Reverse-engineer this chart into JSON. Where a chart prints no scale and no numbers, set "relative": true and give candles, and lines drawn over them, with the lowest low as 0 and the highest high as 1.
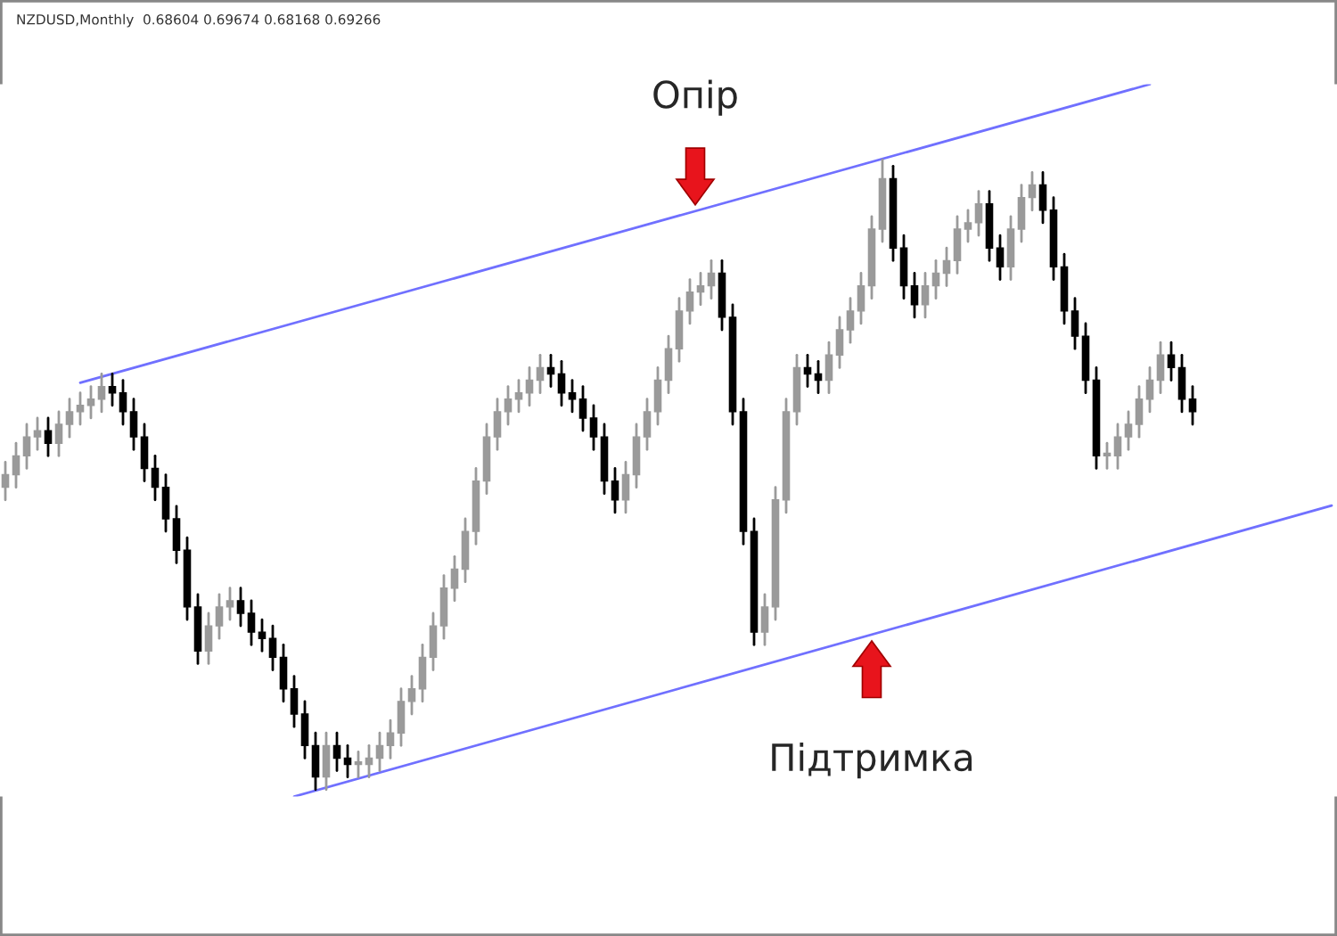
{
  "chart_data": {
    "type": "candlestick",
    "relative": true,
    "annotations": [
      "NZDUSD,Monthly  0.68604 0.69674 0.68168 0.69266",
      "Опір",
      "Підтримка"
    ],
    "categories": [
      null,
      null,
      null,
      null,
      null,
      null,
      null,
      null,
      null,
      null,
      null,
      null,
      null,
      null,
      null,
      null,
      null,
      null,
      null,
      null,
      null,
      null,
      null,
      null,
      null,
      null,
      null,
      null,
      null,
      null,
      null,
      null,
      null,
      null,
      null,
      null,
      null,
      null,
      null,
      null,
      null,
      null,
      null,
      null,
      null,
      null,
      null,
      null,
      null,
      null,
      null,
      null,
      null,
      null,
      null,
      null,
      null,
      null,
      null,
      null,
      null,
      null,
      null,
      null,
      null,
      null,
      null,
      null,
      null,
      null,
      null,
      null,
      null,
      null,
      null,
      null,
      null,
      null,
      null,
      null,
      null,
      null,
      null,
      null,
      null,
      null,
      null,
      null,
      null,
      null,
      null,
      null,
      null,
      null,
      null,
      null,
      null,
      null,
      null,
      null,
      null,
      null,
      null,
      null,
      null,
      null,
      null,
      null,
      null,
      null,
      null,
      null,
      null,
      null,
      null,
      null,
      null,
      null,
      null,
      null,
      null,
      null,
      null,
      null,
      null
    ],
    "ohlc": [
      [
        0.48,
        0.52,
        0.46,
        0.5
      ],
      [
        0.5,
        0.55,
        0.48,
        0.53
      ],
      [
        0.53,
        0.58,
        0.51,
        0.56
      ],
      [
        0.56,
        0.59,
        0.54,
        0.57
      ],
      [
        0.57,
        0.59,
        0.53,
        0.55
      ],
      [
        0.55,
        0.6,
        0.53,
        0.58
      ],
      [
        0.58,
        0.62,
        0.56,
        0.6
      ],
      [
        0.6,
        0.63,
        0.58,
        0.61
      ],
      [
        0.61,
        0.64,
        0.59,
        0.62
      ],
      [
        0.62,
        0.66,
        0.6,
        0.64
      ],
      [
        0.64,
        0.66,
        0.61,
        0.63
      ],
      [
        0.63,
        0.65,
        0.58,
        0.6
      ],
      [
        0.6,
        0.62,
        0.54,
        0.56
      ],
      [
        0.56,
        0.58,
        0.49,
        0.51
      ],
      [
        0.51,
        0.53,
        0.46,
        0.48
      ],
      [
        0.48,
        0.5,
        0.41,
        0.43
      ],
      [
        0.43,
        0.45,
        0.36,
        0.38
      ],
      [
        0.38,
        0.4,
        0.27,
        0.29
      ],
      [
        0.29,
        0.31,
        0.2,
        0.22
      ],
      [
        0.22,
        0.28,
        0.2,
        0.26
      ],
      [
        0.26,
        0.31,
        0.24,
        0.29
      ],
      [
        0.29,
        0.32,
        0.27,
        0.3
      ],
      [
        0.3,
        0.32,
        0.26,
        0.28
      ],
      [
        0.28,
        0.3,
        0.23,
        0.25
      ],
      [
        0.25,
        0.27,
        0.22,
        0.24
      ],
      [
        0.24,
        0.26,
        0.19,
        0.21
      ],
      [
        0.21,
        0.23,
        0.14,
        0.16
      ],
      [
        0.16,
        0.18,
        0.1,
        0.12
      ],
      [
        0.12,
        0.14,
        0.05,
        0.07
      ],
      [
        0.07,
        0.09,
        0.0,
        0.02
      ],
      [
        0.02,
        0.09,
        0.0,
        0.07
      ],
      [
        0.07,
        0.09,
        0.03,
        0.05
      ],
      [
        0.05,
        0.07,
        0.02,
        0.04
      ],
      [
        0.04,
        0.06,
        0.02,
        0.04
      ],
      [
        0.04,
        0.07,
        0.02,
        0.05
      ],
      [
        0.05,
        0.09,
        0.03,
        0.07
      ],
      [
        0.07,
        0.11,
        0.05,
        0.09
      ],
      [
        0.09,
        0.16,
        0.07,
        0.14
      ],
      [
        0.14,
        0.18,
        0.12,
        0.16
      ],
      [
        0.16,
        0.23,
        0.14,
        0.21
      ],
      [
        0.21,
        0.28,
        0.19,
        0.26
      ],
      [
        0.26,
        0.34,
        0.24,
        0.32
      ],
      [
        0.32,
        0.37,
        0.3,
        0.35
      ],
      [
        0.35,
        0.43,
        0.33,
        0.41
      ],
      [
        0.41,
        0.51,
        0.39,
        0.49
      ],
      [
        0.49,
        0.58,
        0.47,
        0.56
      ],
      [
        0.56,
        0.62,
        0.54,
        0.6
      ],
      [
        0.6,
        0.64,
        0.58,
        0.62
      ],
      [
        0.62,
        0.65,
        0.6,
        0.63
      ],
      [
        0.63,
        0.67,
        0.61,
        0.65
      ],
      [
        0.65,
        0.69,
        0.63,
        0.67
      ],
      [
        0.67,
        0.69,
        0.64,
        0.66
      ],
      [
        0.66,
        0.68,
        0.61,
        0.63
      ],
      [
        0.63,
        0.65,
        0.6,
        0.62
      ],
      [
        0.62,
        0.64,
        0.57,
        0.59
      ],
      [
        0.59,
        0.61,
        0.54,
        0.56
      ],
      [
        0.56,
        0.58,
        0.47,
        0.49
      ],
      [
        0.49,
        0.51,
        0.44,
        0.46
      ],
      [
        0.46,
        0.52,
        0.44,
        0.5
      ],
      [
        0.5,
        0.58,
        0.48,
        0.56
      ],
      [
        0.56,
        0.62,
        0.54,
        0.6
      ],
      [
        0.6,
        0.67,
        0.58,
        0.65
      ],
      [
        0.65,
        0.72,
        0.63,
        0.7
      ],
      [
        0.7,
        0.78,
        0.68,
        0.76
      ],
      [
        0.76,
        0.81,
        0.74,
        0.79
      ],
      [
        0.79,
        0.82,
        0.77,
        0.8
      ],
      [
        0.8,
        0.84,
        0.78,
        0.82
      ],
      [
        0.82,
        0.84,
        0.73,
        0.75
      ],
      [
        0.75,
        0.77,
        0.58,
        0.6
      ],
      [
        0.6,
        0.62,
        0.39,
        0.41
      ],
      [
        0.41,
        0.43,
        0.23,
        0.25
      ],
      [
        0.25,
        0.31,
        0.23,
        0.29
      ],
      [
        0.29,
        0.48,
        0.27,
        0.46
      ],
      [
        0.46,
        0.62,
        0.44,
        0.6
      ],
      [
        0.6,
        0.69,
        0.58,
        0.67
      ],
      [
        0.67,
        0.69,
        0.64,
        0.66
      ],
      [
        0.66,
        0.68,
        0.63,
        0.65
      ],
      [
        0.65,
        0.71,
        0.63,
        0.69
      ],
      [
        0.69,
        0.75,
        0.67,
        0.73
      ],
      [
        0.73,
        0.78,
        0.71,
        0.76
      ],
      [
        0.76,
        0.82,
        0.74,
        0.8
      ],
      [
        0.8,
        0.91,
        0.78,
        0.89
      ],
      [
        0.89,
        1.0,
        0.87,
        0.97
      ],
      [
        0.97,
        0.99,
        0.84,
        0.86
      ],
      [
        0.86,
        0.88,
        0.78,
        0.8
      ],
      [
        0.8,
        0.82,
        0.75,
        0.77
      ],
      [
        0.77,
        0.82,
        0.75,
        0.8
      ],
      [
        0.8,
        0.84,
        0.78,
        0.82
      ],
      [
        0.82,
        0.86,
        0.8,
        0.84
      ],
      [
        0.84,
        0.91,
        0.82,
        0.89
      ],
      [
        0.89,
        0.92,
        0.87,
        0.9
      ],
      [
        0.9,
        0.95,
        0.88,
        0.93
      ],
      [
        0.93,
        0.95,
        0.84,
        0.86
      ],
      [
        0.86,
        0.88,
        0.81,
        0.83
      ],
      [
        0.83,
        0.91,
        0.81,
        0.89
      ],
      [
        0.89,
        0.96,
        0.87,
        0.94
      ],
      [
        0.94,
        0.98,
        0.92,
        0.96
      ],
      [
        0.96,
        0.98,
        0.9,
        0.92
      ],
      [
        0.92,
        0.94,
        0.81,
        0.83
      ],
      [
        0.83,
        0.85,
        0.74,
        0.76
      ],
      [
        0.76,
        0.78,
        0.7,
        0.72
      ],
      [
        0.72,
        0.74,
        0.63,
        0.65
      ],
      [
        0.65,
        0.67,
        0.51,
        0.53
      ],
      [
        0.53,
        0.55,
        0.51,
        0.53
      ],
      [
        0.53,
        0.58,
        0.51,
        0.56
      ],
      [
        0.56,
        0.6,
        0.54,
        0.58
      ],
      [
        0.58,
        0.64,
        0.56,
        0.62
      ],
      [
        0.62,
        0.67,
        0.6,
        0.65
      ],
      [
        0.65,
        0.71,
        0.63,
        0.69
      ],
      [
        0.69,
        0.71,
        0.65,
        0.67
      ],
      [
        0.67,
        0.69,
        0.6,
        0.62
      ],
      [
        0.62,
        0.64,
        0.58,
        0.6
      ],
      null,
      null,
      null,
      null,
      null,
      null,
      null,
      null,
      null,
      null,
      null,
      null,
      null
    ],
    "series": [
      {
        "type": "line",
        "color": "#7070ff",
        "values": [
          null,
          null,
          null,
          null,
          null,
          null,
          null,
          0.646,
          null,
          null,
          null,
          null,
          null,
          null,
          null,
          null,
          null,
          null,
          null,
          null,
          null,
          null,
          null,
          null,
          null,
          null,
          null,
          null,
          null,
          null,
          null,
          null,
          null,
          null,
          null,
          null,
          null,
          null,
          null,
          null,
          null,
          null,
          null,
          null,
          null,
          null,
          null,
          null,
          null,
          null,
          null,
          null,
          null,
          null,
          null,
          null,
          null,
          null,
          null,
          null,
          null,
          null,
          null,
          null,
          null,
          null,
          null,
          null,
          null,
          null,
          null,
          null,
          null,
          null,
          null,
          null,
          null,
          null,
          null,
          null,
          null,
          null,
          null,
          null,
          null,
          null,
          null,
          null,
          null,
          null,
          null,
          null,
          null,
          null,
          null,
          null,
          null,
          null,
          null,
          null,
          null,
          null,
          null,
          null,
          null,
          null,
          null,
          1.12,
          null,
          null,
          null,
          null,
          null,
          null,
          null,
          null,
          null,
          null,
          null,
          null,
          null,
          null,
          null,
          null,
          null
        ]
      },
      {
        "type": "line",
        "color": "#7070ff",
        "values": [
          null,
          null,
          null,
          null,
          null,
          null,
          null,
          null,
          null,
          null,
          null,
          null,
          null,
          null,
          null,
          null,
          null,
          null,
          null,
          null,
          null,
          null,
          null,
          null,
          null,
          null,
          null,
          -0.011,
          null,
          null,
          null,
          null,
          null,
          null,
          null,
          null,
          null,
          null,
          null,
          null,
          null,
          null,
          null,
          null,
          null,
          null,
          null,
          null,
          null,
          null,
          null,
          null,
          null,
          null,
          null,
          null,
          null,
          null,
          null,
          null,
          null,
          null,
          null,
          null,
          null,
          null,
          null,
          null,
          null,
          null,
          null,
          null,
          null,
          null,
          null,
          null,
          null,
          null,
          null,
          null,
          null,
          null,
          null,
          null,
          null,
          null,
          null,
          null,
          null,
          null,
          null,
          null,
          null,
          null,
          null,
          null,
          null,
          null,
          null,
          null,
          null,
          null,
          null,
          null,
          null,
          null,
          null,
          null,
          null,
          null,
          null,
          null,
          null,
          null,
          null,
          null,
          null,
          null,
          null,
          null,
          null,
          null,
          null,
          null,
          0.451
        ]
      }
    ]
  }
}
